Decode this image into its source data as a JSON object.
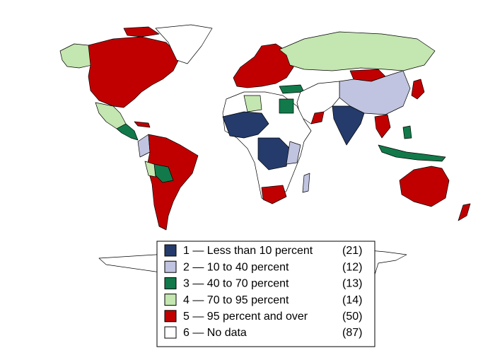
{
  "legend": {
    "items": [
      {
        "label": "1 — Less than 10 percent",
        "count": "(21)",
        "color": "#243b6b"
      },
      {
        "label": "2 — 10 to 40 percent",
        "count": "(12)",
        "color": "#c0c4e0"
      },
      {
        "label": "3 — 40 to 70 percent",
        "count": "(13)",
        "color": "#127a4a"
      },
      {
        "label": "4 — 70 to 95 percent",
        "count": "(14)",
        "color": "#c4e6b0"
      },
      {
        "label": "5 — 95 percent and over",
        "count": "(50)",
        "color": "#c00000"
      },
      {
        "label": "6 — No data",
        "count": "(87)",
        "color": "#ffffff"
      }
    ]
  }
}
